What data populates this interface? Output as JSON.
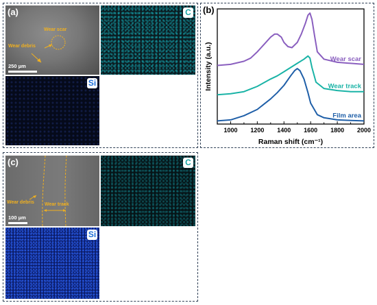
{
  "panel_a": {
    "label": "(a)",
    "sem": {
      "wear_scar": "Wear scar",
      "wear_debris": "Wear debris",
      "scale": "250 μm"
    },
    "maps": [
      {
        "element": "C",
        "color": "#1aa7a7"
      },
      {
        "element": "Si",
        "color": "#1e6fd9"
      }
    ]
  },
  "panel_c": {
    "label": "(c)",
    "sem": {
      "wear_debris": "Wear debris",
      "wear_track": "Wear track",
      "scale": "100 μm"
    },
    "maps": [
      {
        "element": "C",
        "color": "#1aa7a7"
      },
      {
        "element": "Si",
        "color": "#1e6fd9"
      }
    ]
  },
  "panel_b": {
    "label": "(b)"
  },
  "chart_data": {
    "type": "line",
    "xlabel": "Raman shift (cm⁻¹)",
    "ylabel": "Intensity (a.u.)",
    "xlim": [
      900,
      2000
    ],
    "xticks": [
      1000,
      1200,
      1400,
      1600,
      1800,
      2000
    ],
    "y_ticks_shown": false,
    "series": [
      {
        "name": "Wear scar",
        "color": "#8a5fbf",
        "x": [
          900,
          1000,
          1100,
          1150,
          1200,
          1250,
          1300,
          1330,
          1350,
          1380,
          1400,
          1430,
          1460,
          1500,
          1530,
          1560,
          1580,
          1595,
          1610,
          1630,
          1650,
          1700,
          1800,
          1900,
          2000
        ],
        "y": [
          5.6,
          5.7,
          6.0,
          6.3,
          6.9,
          7.6,
          8.3,
          8.6,
          8.6,
          8.3,
          7.8,
          7.4,
          7.3,
          7.8,
          8.6,
          9.6,
          10.4,
          10.6,
          10.0,
          8.4,
          6.9,
          6.2,
          5.9,
          5.8,
          5.7
        ]
      },
      {
        "name": "Wear track",
        "color": "#19b3a6",
        "x": [
          900,
          1000,
          1100,
          1200,
          1300,
          1350,
          1400,
          1450,
          1500,
          1550,
          1580,
          1595,
          1610,
          1640,
          1700,
          1800,
          1900,
          2000
        ],
        "y": [
          2.8,
          2.9,
          3.1,
          3.6,
          4.3,
          4.6,
          5.0,
          5.4,
          5.8,
          6.2,
          6.5,
          6.3,
          5.4,
          4.0,
          3.4,
          3.2,
          3.1,
          3.1
        ]
      },
      {
        "name": "Film area",
        "color": "#1f5fa8",
        "x": [
          900,
          1000,
          1100,
          1200,
          1300,
          1350,
          1400,
          1450,
          1480,
          1500,
          1520,
          1550,
          1580,
          1600,
          1650,
          1700,
          1800,
          1900,
          2000
        ],
        "y": [
          0.3,
          0.4,
          0.8,
          1.4,
          2.4,
          3.0,
          3.7,
          4.6,
          5.1,
          5.3,
          5.1,
          4.3,
          3.0,
          2.0,
          0.9,
          0.6,
          0.4,
          0.35,
          0.3
        ]
      }
    ]
  }
}
